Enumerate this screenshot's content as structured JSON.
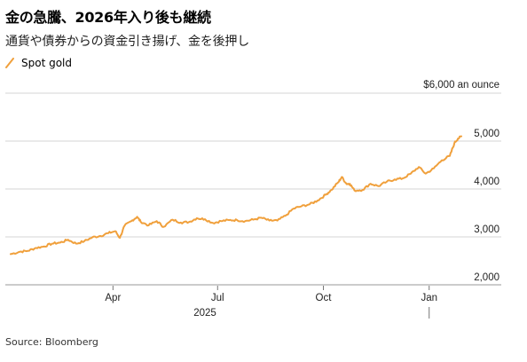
{
  "header": {
    "title": "金の急騰、2026年入り後も継続",
    "subtitle": "通貨や債券からの資金引き揚げ、金を後押し"
  },
  "legend": {
    "label": "Spot gold",
    "color": "#f0a03c"
  },
  "footer": {
    "source": "Source: Bloomberg"
  },
  "chart_data": {
    "type": "line",
    "title": "金の急騰、2026年入り後も継続",
    "subtitle": "通貨や債券からの資金引き揚げ、金を後押し",
    "ylabel": "$6,000 an ounce",
    "ylim": [
      2000,
      6000
    ],
    "xlim": [
      "2025-01-02",
      "2026-01-29"
    ],
    "y_ticks": [
      {
        "value": 2000,
        "label": "2,000"
      },
      {
        "value": 3000,
        "label": "3,000"
      },
      {
        "value": 4000,
        "label": "4,000"
      },
      {
        "value": 5000,
        "label": "5,000"
      },
      {
        "value": 6000,
        "label": "$6,000 an ounce"
      }
    ],
    "x_ticks": [
      {
        "date": "2025-04-01",
        "label": "Apr"
      },
      {
        "date": "2025-07-01",
        "label": "Jul"
      },
      {
        "date": "2025-10-01",
        "label": "Oct"
      },
      {
        "date": "2026-01-01",
        "label": "Jan"
      }
    ],
    "year_labels": [
      {
        "date": "2025-06-20",
        "label": "2025"
      }
    ],
    "year_divider": "2026-01-01",
    "grid": true,
    "legend_position": "top-left",
    "series": [
      {
        "name": "Spot gold",
        "color": "#f0a03c",
        "x": [
          "2025-01-02",
          "2025-01-10",
          "2025-01-17",
          "2025-01-24",
          "2025-01-31",
          "2025-02-07",
          "2025-02-14",
          "2025-02-21",
          "2025-02-28",
          "2025-03-07",
          "2025-03-14",
          "2025-03-21",
          "2025-03-28",
          "2025-04-03",
          "2025-04-07",
          "2025-04-11",
          "2025-04-17",
          "2025-04-22",
          "2025-04-25",
          "2025-05-02",
          "2025-05-09",
          "2025-05-15",
          "2025-05-23",
          "2025-05-30",
          "2025-06-06",
          "2025-06-13",
          "2025-06-20",
          "2025-06-27",
          "2025-07-04",
          "2025-07-11",
          "2025-07-18",
          "2025-07-25",
          "2025-08-01",
          "2025-08-08",
          "2025-08-15",
          "2025-08-22",
          "2025-08-29",
          "2025-09-05",
          "2025-09-12",
          "2025-09-19",
          "2025-09-26",
          "2025-10-03",
          "2025-10-08",
          "2025-10-14",
          "2025-10-17",
          "2025-10-21",
          "2025-10-24",
          "2025-10-28",
          "2025-11-04",
          "2025-11-11",
          "2025-11-18",
          "2025-11-25",
          "2025-12-02",
          "2025-12-09",
          "2025-12-16",
          "2025-12-23",
          "2025-12-29",
          "2026-01-05",
          "2026-01-12",
          "2026-01-19",
          "2026-01-23",
          "2026-01-26",
          "2026-01-29"
        ],
        "values": [
          2640,
          2690,
          2710,
          2770,
          2800,
          2860,
          2880,
          2940,
          2860,
          2910,
          2990,
          3020,
          3080,
          3120,
          2980,
          3230,
          3330,
          3420,
          3320,
          3240,
          3330,
          3210,
          3360,
          3300,
          3310,
          3390,
          3370,
          3290,
          3330,
          3350,
          3350,
          3330,
          3360,
          3400,
          3340,
          3340,
          3440,
          3590,
          3640,
          3680,
          3760,
          3880,
          3980,
          4140,
          4250,
          4110,
          4110,
          3970,
          3980,
          4110,
          4060,
          4150,
          4200,
          4220,
          4320,
          4460,
          4320,
          4430,
          4600,
          4690,
          4960,
          5050,
          5100
        ]
      }
    ]
  }
}
